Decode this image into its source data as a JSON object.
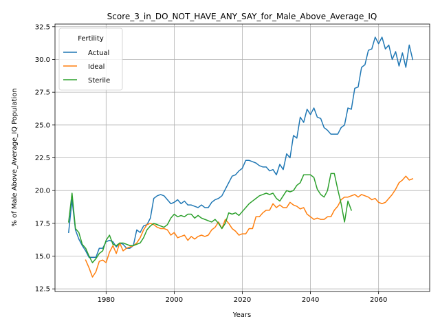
{
  "chart_data": {
    "type": "line",
    "title": "Score_3_in_DO_NOT_HAVE_ANY_SAY_for_Male_Above_Average_IQ",
    "xlabel": "Years",
    "ylabel": "% of Male Above_Average_IQ Population",
    "xlim": [
      1965,
      2075
    ],
    "ylim": [
      12.3,
      32.7
    ],
    "xticks": [
      1980,
      2000,
      2020,
      2040,
      2060
    ],
    "xtick_labels": [
      "1980",
      "2000",
      "2020",
      "2040",
      "2060"
    ],
    "yticks": [
      12.5,
      15.0,
      17.5,
      20.0,
      22.5,
      25.0,
      27.5,
      30.0,
      32.5
    ],
    "ytick_labels": [
      "12.5",
      "15.0",
      "17.5",
      "20.0",
      "22.5",
      "25.0",
      "27.5",
      "30.0",
      "32.5"
    ],
    "grid": true,
    "legend": {
      "title": "Fertility",
      "placement": "upper-left"
    },
    "series": [
      {
        "name": "Actual",
        "color": "#1f77b4",
        "x": [
          1969,
          1970,
          1971,
          1972,
          1973,
          1974,
          1975,
          1976,
          1977,
          1978,
          1979,
          1980,
          1981,
          1982,
          1983,
          1984,
          1985,
          1986,
          1987,
          1988,
          1989,
          1990,
          1991,
          1992,
          1993,
          1994,
          1995,
          1996,
          1997,
          1998,
          1999,
          2000,
          2001,
          2002,
          2003,
          2004,
          2005,
          2006,
          2007,
          2008,
          2009,
          2010,
          2011,
          2012,
          2013,
          2014,
          2015,
          2016,
          2017,
          2018,
          2019,
          2020,
          2021,
          2022,
          2023,
          2024,
          2025,
          2026,
          2027,
          2028,
          2029,
          2030,
          2031,
          2032,
          2033,
          2034,
          2035,
          2036,
          2037,
          2038,
          2039,
          2040,
          2041,
          2042,
          2043,
          2044,
          2045,
          2046,
          2047,
          2048,
          2049,
          2050,
          2051,
          2052,
          2053,
          2054,
          2055,
          2056,
          2057,
          2058,
          2059,
          2060,
          2061,
          2062,
          2063,
          2064,
          2065,
          2066,
          2067,
          2068,
          2069,
          2070
        ],
        "y": [
          16.8,
          19.3,
          17.0,
          16.3,
          15.8,
          15.4,
          14.9,
          14.9,
          14.9,
          15.6,
          15.6,
          16.1,
          16.2,
          16.1,
          15.7,
          16.0,
          15.9,
          15.6,
          15.6,
          15.8,
          17.0,
          16.8,
          17.3,
          17.4,
          17.9,
          19.4,
          19.6,
          19.7,
          19.6,
          19.3,
          19.0,
          19.1,
          19.3,
          19.0,
          19.2,
          18.9,
          18.9,
          18.8,
          18.7,
          18.9,
          18.7,
          18.7,
          19.1,
          19.3,
          19.4,
          19.6,
          20.1,
          20.6,
          21.1,
          21.2,
          21.5,
          21.7,
          22.3,
          22.3,
          22.2,
          22.1,
          21.9,
          21.8,
          21.8,
          21.5,
          21.6,
          21.2,
          22.0,
          21.6,
          22.8,
          22.5,
          24.2,
          24.0,
          25.6,
          25.2,
          26.2,
          25.8,
          26.3,
          25.6,
          25.5,
          24.8,
          24.6,
          24.3,
          24.3,
          24.3,
          24.8,
          25.0,
          26.3,
          26.2,
          27.8,
          27.9,
          29.4,
          29.6,
          30.7,
          30.8,
          31.7,
          31.2,
          31.7,
          30.8,
          31.1,
          30.0,
          30.6,
          29.5,
          30.5,
          29.4,
          31.1,
          30.0
        ]
      },
      {
        "name": "Ideal",
        "color": "#ff7f0e",
        "x": [
          1974,
          1975,
          1976,
          1977,
          1978,
          1979,
          1980,
          1981,
          1982,
          1983,
          1984,
          1985,
          1986,
          1987,
          1988,
          1989,
          1990,
          1991,
          1992,
          1993,
          1994,
          1995,
          1996,
          1997,
          1998,
          1999,
          2000,
          2001,
          2002,
          2003,
          2004,
          2005,
          2006,
          2007,
          2008,
          2009,
          2010,
          2011,
          2012,
          2013,
          2014,
          2015,
          2016,
          2017,
          2018,
          2019,
          2020,
          2021,
          2022,
          2023,
          2024,
          2025,
          2026,
          2027,
          2028,
          2029,
          2030,
          2031,
          2032,
          2033,
          2034,
          2035,
          2036,
          2037,
          2038,
          2039,
          2040,
          2041,
          2042,
          2043,
          2044,
          2045,
          2046,
          2047,
          2048,
          2049,
          2050,
          2051,
          2052,
          2053,
          2054,
          2055,
          2056,
          2057,
          2058,
          2059,
          2060,
          2061,
          2062,
          2063,
          2064,
          2065,
          2066,
          2067,
          2068,
          2069,
          2070
        ],
        "y": [
          14.7,
          14.1,
          13.4,
          13.8,
          14.6,
          14.7,
          14.5,
          15.3,
          15.8,
          15.2,
          16.0,
          15.4,
          15.6,
          15.7,
          15.8,
          16.0,
          16.4,
          17.0,
          17.4,
          17.5,
          17.4,
          17.2,
          17.1,
          17.1,
          17.0,
          16.6,
          16.8,
          16.4,
          16.5,
          16.6,
          16.2,
          16.5,
          16.3,
          16.5,
          16.6,
          16.5,
          16.6,
          17.0,
          17.2,
          17.6,
          17.1,
          17.8,
          17.5,
          17.1,
          16.9,
          16.6,
          16.7,
          16.7,
          17.1,
          17.1,
          18.0,
          18.0,
          18.3,
          18.5,
          18.5,
          19.0,
          18.7,
          18.9,
          18.7,
          18.7,
          19.1,
          18.9,
          18.8,
          18.6,
          18.7,
          18.2,
          18.0,
          17.8,
          17.9,
          17.8,
          17.8,
          18.0,
          18.0,
          18.5,
          18.8,
          19.3,
          19.5,
          19.5,
          19.6,
          19.7,
          19.5,
          19.7,
          19.6,
          19.5,
          19.3,
          19.4,
          19.1,
          19.0,
          19.1,
          19.4,
          19.7,
          20.1,
          20.6,
          20.8,
          21.1,
          20.8,
          20.9
        ]
      },
      {
        "name": "Sterile",
        "color": "#2ca02c",
        "x": [
          1969,
          1970,
          1971,
          1972,
          1973,
          1974,
          1975,
          1976,
          1977,
          1978,
          1979,
          1980,
          1981,
          1982,
          1983,
          1984,
          1985,
          1986,
          1987,
          1988,
          1989,
          1990,
          1991,
          1992,
          1993,
          1994,
          1995,
          1996,
          1997,
          1998,
          1999,
          2000,
          2001,
          2002,
          2003,
          2004,
          2005,
          2006,
          2007,
          2008,
          2009,
          2010,
          2011,
          2012,
          2013,
          2014,
          2015,
          2016,
          2017,
          2018,
          2019,
          2020,
          2021,
          2022,
          2023,
          2024,
          2025,
          2026,
          2027,
          2028,
          2029,
          2030,
          2031,
          2032,
          2033,
          2034,
          2035,
          2036,
          2037,
          2038,
          2039,
          2040,
          2041,
          2042,
          2043,
          2044,
          2045,
          2046,
          2047,
          2048,
          2049,
          2050,
          2051,
          2052
        ],
        "y": [
          17.6,
          19.8,
          17.1,
          16.8,
          15.9,
          15.6,
          15.0,
          14.5,
          14.8,
          15.2,
          15.4,
          16.2,
          16.6,
          15.9,
          15.8,
          16.0,
          16.0,
          15.9,
          15.8,
          15.8,
          15.9,
          16.0,
          16.4,
          17.0,
          17.3,
          17.5,
          17.4,
          17.3,
          17.2,
          17.4,
          17.9,
          18.2,
          18.0,
          18.1,
          18.0,
          18.2,
          18.2,
          17.9,
          18.1,
          17.9,
          17.8,
          17.7,
          17.6,
          17.8,
          17.5,
          17.1,
          17.5,
          18.3,
          18.2,
          18.3,
          18.1,
          18.4,
          18.7,
          19.0,
          19.2,
          19.4,
          19.6,
          19.7,
          19.8,
          19.7,
          19.8,
          19.4,
          19.2,
          19.6,
          20.0,
          19.9,
          20.0,
          20.4,
          20.6,
          21.2,
          21.2,
          21.2,
          21.0,
          20.1,
          19.7,
          19.5,
          20.0,
          21.3,
          21.3,
          20.1,
          19.0,
          17.6,
          19.2,
          18.5
        ]
      }
    ]
  }
}
